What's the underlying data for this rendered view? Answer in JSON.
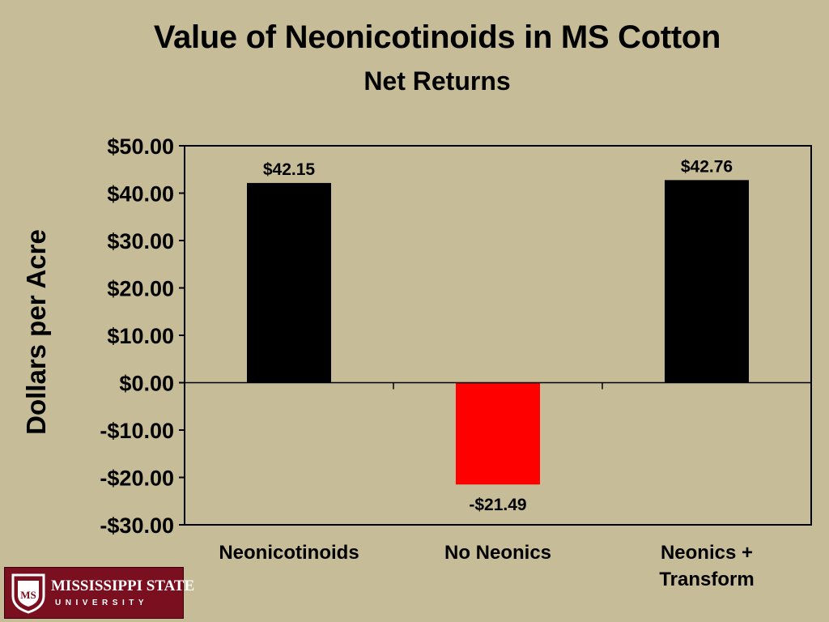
{
  "chart_data": {
    "type": "bar",
    "title": "Value of Neonicotinoids in MS Cotton",
    "subtitle": "Net Returns",
    "ylabel": "Dollars per Acre",
    "xlabel": "",
    "categories": [
      [
        "Neonicotinoids"
      ],
      [
        "No Neonics"
      ],
      [
        "Neonics +",
        "Transform"
      ]
    ],
    "values": [
      42.15,
      -21.49,
      42.76
    ],
    "data_labels": [
      "$42.15",
      "-$21.49",
      "$42.76"
    ],
    "bar_colors": [
      "#000000",
      "#ff0000",
      "#000000"
    ],
    "ylim": [
      -30,
      50
    ],
    "yticks": [
      50,
      40,
      30,
      20,
      10,
      0,
      -10,
      -20,
      -30
    ],
    "ytick_labels": [
      "$50.00",
      "$40.00",
      "$30.00",
      "$20.00",
      "$10.00",
      "$0.00",
      "-$10.00",
      "-$20.00",
      "-$30.00"
    ],
    "grid": false,
    "legend": "none"
  },
  "logo": {
    "name": "MISSISSIPPI STATE",
    "sub": "UNIVERSITY",
    "shield_text": "MS",
    "color": "#7a0f1f"
  }
}
